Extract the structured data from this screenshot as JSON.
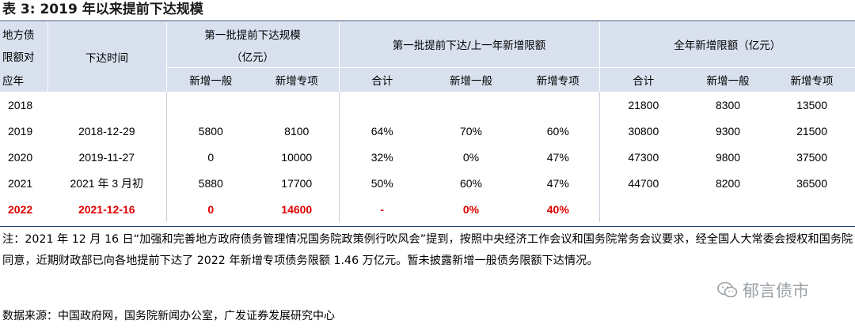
{
  "title": "表 3:  2019 年以来提前下达规模",
  "header": {
    "col1_lines": [
      "地方债",
      "限额对",
      "应年"
    ],
    "col2": "下达时间",
    "group1_lines": [
      "第一批提前下达规模",
      "（亿元）"
    ],
    "group2": "第一批提前下达/上一年新增限额",
    "group3": "全年新增限额（亿元）",
    "sub": [
      "新增一般",
      "新增专项",
      "合计",
      "新增一般",
      "新增专项",
      "合计",
      "新增一般",
      "新增专项"
    ]
  },
  "rows": [
    {
      "year": "2018",
      "date": "",
      "v": [
        "",
        "",
        "",
        "",
        "",
        "21800",
        "8300",
        "13500"
      ]
    },
    {
      "year": "2019",
      "date": "2018-12-29",
      "v": [
        "5800",
        "8100",
        "64%",
        "70%",
        "60%",
        "30800",
        "9300",
        "21500"
      ]
    },
    {
      "year": "2020",
      "date": "2019-11-27",
      "v": [
        "0",
        "10000",
        "32%",
        "0%",
        "47%",
        "47300",
        "9800",
        "37500"
      ]
    },
    {
      "year": "2021",
      "date": "2021 年 3 月初",
      "v": [
        "5880",
        "17700",
        "50%",
        "60%",
        "47%",
        "44700",
        "8200",
        "36500"
      ]
    },
    {
      "year": "2022",
      "date": "2021-12-16",
      "v": [
        "0",
        "14600",
        "-",
        "0%",
        "40%",
        "",
        "",
        ""
      ]
    }
  ],
  "note": "注：2021 年 12 月 16 日“加强和完善地方政府债务管理情况国务院政策例行吹风会”提到，按照中央经济工作会议和国务院常务会议要求，经全国人大常委会授权和国务院同意，近期财政部已向各地提前下达了 2022 年新增专项债务限额 1.46 万亿元。暂未披露新增一般债务限额下达情况。",
  "source": "数据来源：中国政府网，国务院新闻办公室，广发证券发展研究中心",
  "watermark": "郁言债市",
  "colors": {
    "header_bg": "#d9e1ef",
    "rule": "#1f3a75",
    "highlight": "#e00000"
  }
}
